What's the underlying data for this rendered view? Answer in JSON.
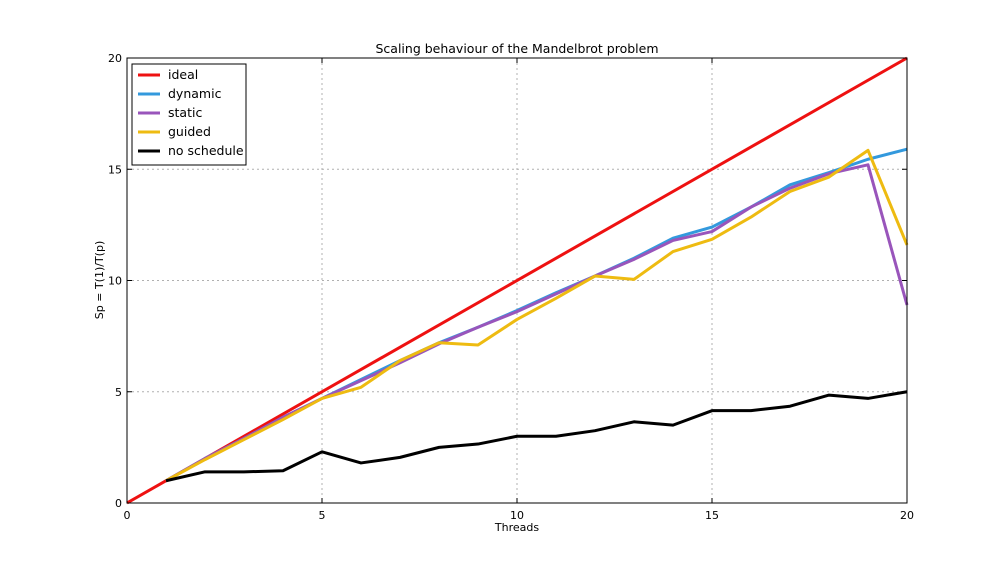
{
  "chart_data": {
    "type": "line",
    "title": "Scaling behaviour of the Mandelbrot problem",
    "xlabel": "Threads",
    "ylabel": "Sp = T(1)/T(p)",
    "xlim": [
      0,
      20
    ],
    "ylim": [
      0,
      20
    ],
    "xticks": [
      0,
      5,
      10,
      15,
      20
    ],
    "yticks": [
      0,
      5,
      10,
      15,
      20
    ],
    "grid": true,
    "legend_position": "top-left",
    "series": [
      {
        "name": "ideal",
        "color": "#ee1111",
        "x": [
          0,
          20
        ],
        "y": [
          0,
          20
        ]
      },
      {
        "name": "dynamic",
        "color": "#3399dd",
        "x": [
          1,
          2,
          3,
          4,
          5,
          6,
          7,
          8,
          9,
          10,
          11,
          12,
          13,
          14,
          15,
          16,
          17,
          18,
          19,
          20
        ],
        "y": [
          1.0,
          2.0,
          2.9,
          3.85,
          4.7,
          5.55,
          6.4,
          7.2,
          7.9,
          8.65,
          9.45,
          10.2,
          11.0,
          11.9,
          12.4,
          13.3,
          14.3,
          14.85,
          15.45,
          15.9
        ]
      },
      {
        "name": "static",
        "color": "#9955bb",
        "x": [
          1,
          2,
          3,
          4,
          5,
          6,
          7,
          8,
          9,
          10,
          11,
          12,
          13,
          14,
          15,
          16,
          17,
          18,
          19,
          20
        ],
        "y": [
          1.0,
          2.0,
          2.9,
          3.85,
          4.7,
          5.5,
          6.3,
          7.15,
          7.9,
          8.6,
          9.4,
          10.2,
          10.95,
          11.8,
          12.2,
          13.3,
          14.15,
          14.8,
          15.2,
          8.9
        ]
      },
      {
        "name": "guided",
        "color": "#eebb11",
        "x": [
          1,
          2,
          3,
          4,
          5,
          6,
          7,
          8,
          9,
          10,
          11,
          12,
          13,
          14,
          15,
          16,
          17,
          18,
          19,
          20
        ],
        "y": [
          1.0,
          1.95,
          2.85,
          3.75,
          4.7,
          5.2,
          6.4,
          7.2,
          7.1,
          8.25,
          9.2,
          10.2,
          10.05,
          11.3,
          11.85,
          12.85,
          14.0,
          14.65,
          15.85,
          11.6
        ]
      },
      {
        "name": "no schedule",
        "color": "#000000",
        "x": [
          1,
          2,
          3,
          4,
          5,
          6,
          7,
          8,
          9,
          10,
          11,
          12,
          13,
          14,
          15,
          16,
          17,
          18,
          19,
          20
        ],
        "y": [
          1.0,
          1.4,
          1.4,
          1.45,
          2.3,
          1.8,
          2.05,
          2.5,
          2.65,
          3.0,
          3.0,
          3.25,
          3.65,
          3.5,
          4.15,
          4.15,
          4.35,
          4.85,
          4.7,
          5.0
        ]
      }
    ]
  }
}
